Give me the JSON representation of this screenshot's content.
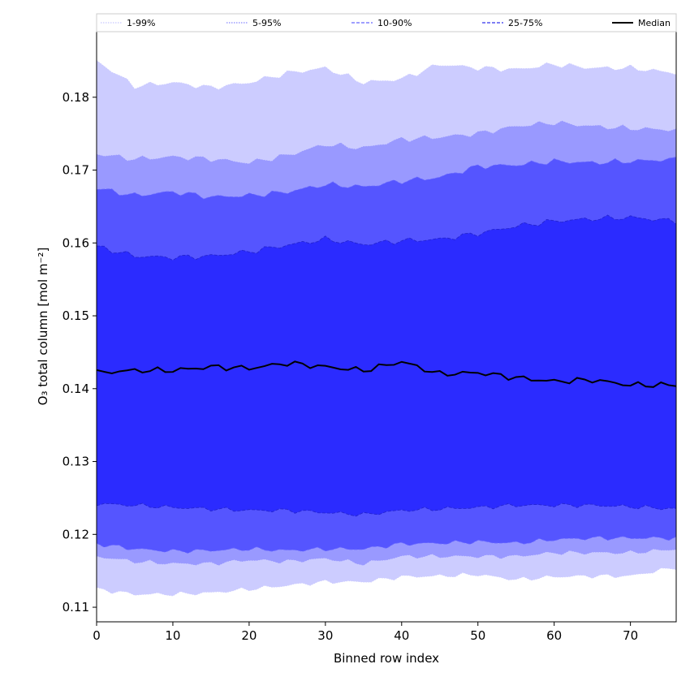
{
  "chart_data": {
    "type": "area",
    "xlabel": "Binned row index",
    "ylabel": "O₃ total column [mol m⁻²]",
    "xlim": [
      0,
      76
    ],
    "ylim": [
      0.108,
      0.189
    ],
    "x_ticks": [
      0,
      10,
      20,
      30,
      40,
      50,
      60,
      70
    ],
    "y_ticks": [
      0.11,
      0.12,
      0.13,
      0.14,
      0.15,
      0.16,
      0.17,
      0.18
    ],
    "grid": false,
    "legend_position": "top",
    "x_anchors": [
      0,
      5,
      10,
      15,
      20,
      25,
      30,
      35,
      40,
      45,
      50,
      55,
      60,
      65,
      70,
      76
    ],
    "bands": [
      {
        "name": "1-99%",
        "fill": "#ccccff",
        "line_color": "#ccccff",
        "lower": [
          0.1125,
          0.1118,
          0.1118,
          0.112,
          0.1125,
          0.113,
          0.1135,
          0.1135,
          0.1142,
          0.1143,
          0.1145,
          0.1138,
          0.1142,
          0.1143,
          0.1143,
          0.1155
        ],
        "upper": [
          0.185,
          0.1815,
          0.182,
          0.1813,
          0.182,
          0.1833,
          0.184,
          0.182,
          0.1825,
          0.1845,
          0.184,
          0.1838,
          0.1845,
          0.184,
          0.184,
          0.1833
        ]
      },
      {
        "name": "5-95%",
        "fill": "#9999ff",
        "line_color": "#9999ff",
        "lower": [
          0.117,
          0.1163,
          0.116,
          0.116,
          0.1165,
          0.1163,
          0.1167,
          0.116,
          0.117,
          0.117,
          0.117,
          0.117,
          0.1175,
          0.1175,
          0.1175,
          0.118
        ],
        "upper": [
          0.1722,
          0.1715,
          0.1718,
          0.1715,
          0.171,
          0.172,
          0.1735,
          0.173,
          0.1742,
          0.1745,
          0.175,
          0.176,
          0.1765,
          0.176,
          0.1757,
          0.1755
        ]
      },
      {
        "name": "10-90%",
        "fill": "#5555ff",
        "line_color": "#6666ff",
        "lower": [
          0.1187,
          0.118,
          0.1177,
          0.1178,
          0.118,
          0.1178,
          0.118,
          0.118,
          0.1187,
          0.1188,
          0.119,
          0.1188,
          0.1193,
          0.1195,
          0.1195,
          0.1195
        ],
        "upper": [
          0.1675,
          0.1665,
          0.167,
          0.1663,
          0.1665,
          0.167,
          0.168,
          0.1677,
          0.1685,
          0.169,
          0.1705,
          0.1707,
          0.1712,
          0.171,
          0.1712,
          0.1715
        ]
      },
      {
        "name": "25-75%",
        "fill": "#2b2bff",
        "line_color": "#2222cc",
        "lower": [
          0.1242,
          0.124,
          0.1237,
          0.1235,
          0.1233,
          0.1233,
          0.123,
          0.1227,
          0.1233,
          0.1235,
          0.1237,
          0.124,
          0.124,
          0.124,
          0.1238,
          0.1235
        ],
        "upper": [
          0.1595,
          0.1582,
          0.158,
          0.1582,
          0.1588,
          0.1597,
          0.1605,
          0.1598,
          0.1603,
          0.1605,
          0.1613,
          0.1623,
          0.163,
          0.1633,
          0.1635,
          0.163
        ]
      }
    ],
    "median": {
      "name": "Median",
      "color": "#000000",
      "values": [
        0.1422,
        0.1425,
        0.1425,
        0.143,
        0.1428,
        0.1435,
        0.143,
        0.1425,
        0.1437,
        0.142,
        0.1422,
        0.1415,
        0.141,
        0.1412,
        0.1405,
        0.1405
      ]
    },
    "legend": {
      "items": [
        {
          "label": "1-99%",
          "color": "#c8c8ff",
          "dash": "dot"
        },
        {
          "label": "5-95%",
          "color": "#8888ff",
          "dash": "dot"
        },
        {
          "label": "10-90%",
          "color": "#6666ff",
          "dash": "dash"
        },
        {
          "label": "25-75%",
          "color": "#3333ee",
          "dash": "dash"
        },
        {
          "label": "Median",
          "color": "#000000",
          "dash": "solid"
        }
      ]
    }
  }
}
